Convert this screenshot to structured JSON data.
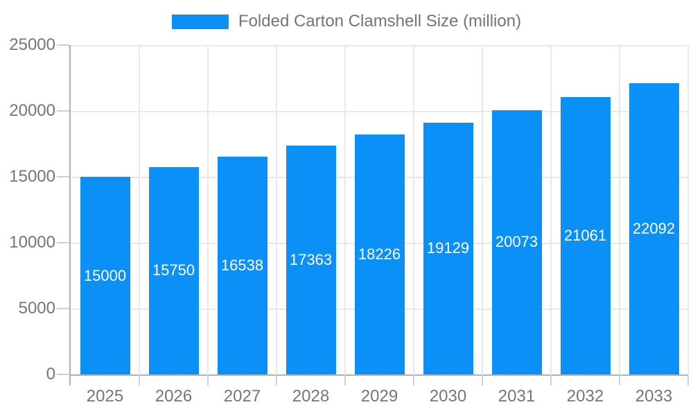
{
  "legend": {
    "label": "Folded Carton Clamshell Size (million)"
  },
  "chart_data": {
    "type": "bar",
    "title": "Folded Carton Clamshell Size (million)",
    "categories": [
      "2025",
      "2026",
      "2027",
      "2028",
      "2029",
      "2030",
      "2031",
      "2032",
      "2033"
    ],
    "values": [
      15000,
      15750,
      16538,
      17363,
      18226,
      19129,
      20073,
      21061,
      22092
    ],
    "series": [
      {
        "name": "Folded Carton Clamshell Size (million)",
        "values": [
          15000,
          15750,
          16538,
          17363,
          18226,
          19129,
          20073,
          21061,
          22092
        ]
      }
    ],
    "xlabel": "",
    "ylabel": "",
    "ylim": [
      0,
      25000
    ],
    "yticks": [
      0,
      5000,
      10000,
      15000,
      20000,
      25000
    ],
    "grid": true,
    "legend_position": "top",
    "value_labels": "inside-center"
  },
  "colors": {
    "bar": "#0a90f6",
    "grid": "#e8e8e8",
    "axis": "#b0b0b0",
    "tick": "#cfcfcf",
    "label_text": "#757575",
    "value_text": "#ffffff",
    "background": "#ffffff"
  }
}
